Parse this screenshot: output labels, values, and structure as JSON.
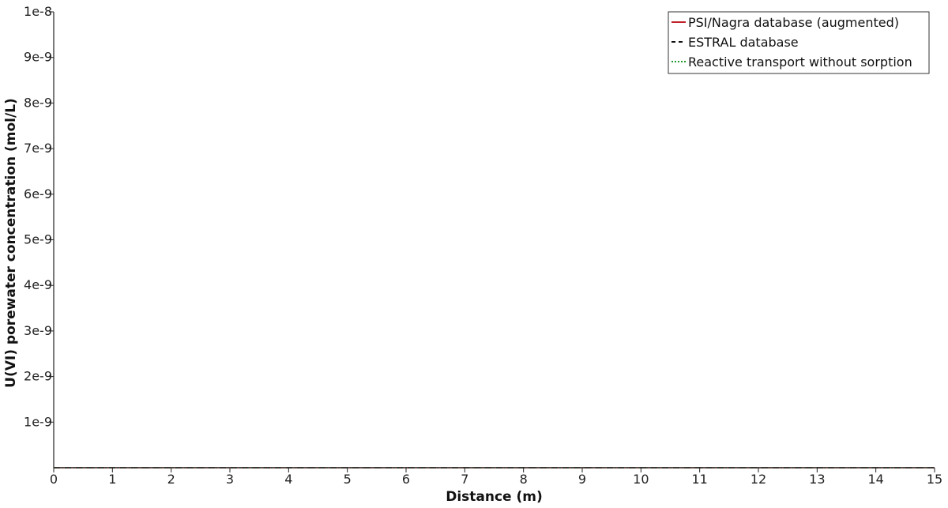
{
  "chart_data": {
    "type": "line",
    "title": "",
    "xlabel": "Distance (m)",
    "ylabel": "U(VI) porewater concentration (mol/L)",
    "xlim": [
      0,
      15
    ],
    "ylim": [
      0,
      1e-08
    ],
    "x_ticks": [
      0,
      1,
      2,
      3,
      4,
      5,
      6,
      7,
      8,
      9,
      10,
      11,
      12,
      13,
      14,
      15
    ],
    "x_tick_labels": [
      "0",
      "1",
      "2",
      "3",
      "4",
      "5",
      "6",
      "7",
      "8",
      "9",
      "10",
      "11",
      "12",
      "13",
      "14",
      "15"
    ],
    "y_ticks": [
      1e-09,
      2e-09,
      3e-09,
      4e-09,
      5e-09,
      6e-09,
      7e-09,
      8e-09,
      9e-09,
      1e-08
    ],
    "y_tick_labels": [
      "1e-9",
      "2e-9",
      "3e-9",
      "4e-9",
      "5e-9",
      "6e-9",
      "7e-9",
      "8e-9",
      "9e-9",
      "1e-8"
    ],
    "grid": false,
    "legend_position": "top-right",
    "series": [
      {
        "name": "PSI/Nagra database (augmented)",
        "color": "#c0202a",
        "style": "solid",
        "x": [
          0,
          15
        ],
        "y": [
          0,
          0
        ]
      },
      {
        "name": "ESTRAL database",
        "color": "#111111",
        "style": "dashed",
        "x": [
          0,
          15
        ],
        "y": [
          0,
          0
        ]
      },
      {
        "name": "Reactive transport without sorption",
        "color": "#1f9a2a",
        "style": "dotted",
        "x": [
          0,
          15
        ],
        "y": [
          0,
          0
        ]
      }
    ]
  }
}
